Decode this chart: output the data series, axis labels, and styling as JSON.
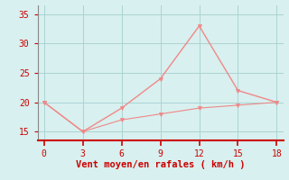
{
  "x": [
    0,
    3,
    6,
    9,
    12,
    15,
    18
  ],
  "y_rafales": [
    20,
    15,
    19,
    24,
    33,
    22,
    20
  ],
  "y_moyen": [
    20,
    15,
    17.0,
    18.0,
    19.0,
    19.5,
    20
  ],
  "line_color": "#f08888",
  "marker": "v",
  "marker_size": 3,
  "bg_color": "#d8f0ef",
  "xlabel": "Vent moyen/en rafales ( km/h )",
  "xlabel_color": "#cc0000",
  "xlabel_fontsize": 7.5,
  "tick_color": "#cc0000",
  "tick_fontsize": 7,
  "axis_color_bottom": "#cc0000",
  "axis_color_left": "#888888",
  "axis_color_other": "#888888",
  "xticks": [
    0,
    3,
    6,
    9,
    12,
    15,
    18
  ],
  "yticks": [
    15,
    20,
    25,
    30,
    35
  ],
  "xlim": [
    -0.5,
    18.5
  ],
  "ylim": [
    13.5,
    36.5
  ],
  "grid_color": "#aad4d4",
  "linewidth_rafales": 1.0,
  "linewidth_moyen": 0.8
}
